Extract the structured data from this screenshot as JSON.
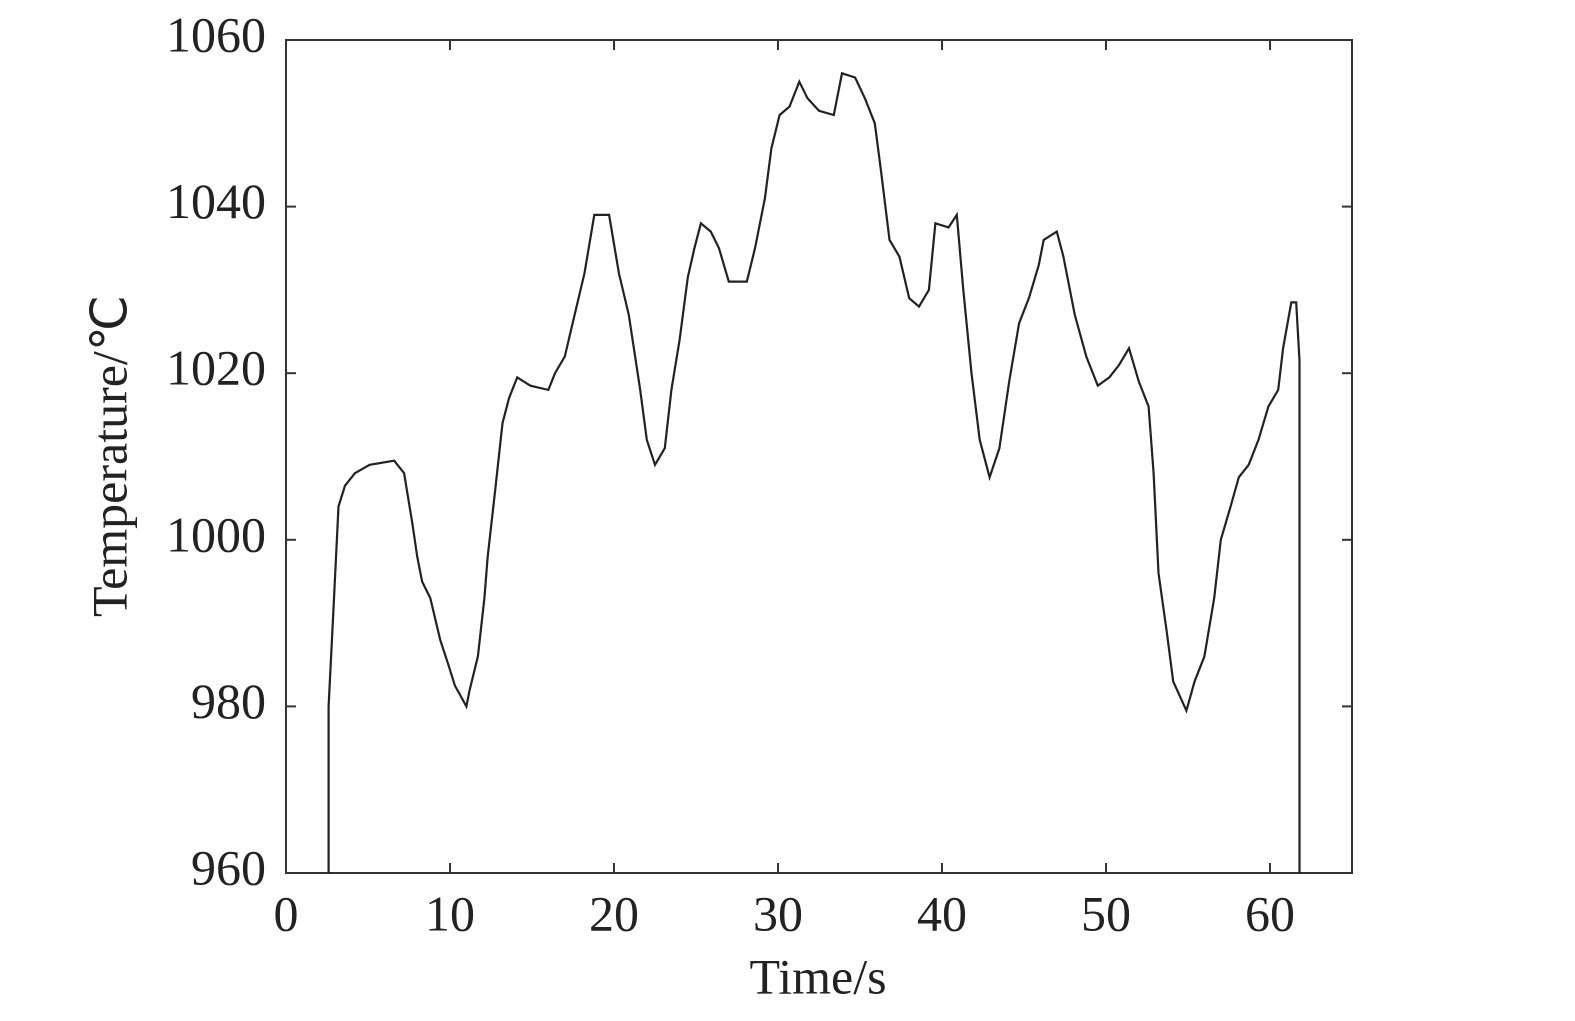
{
  "chart_data": {
    "type": "line",
    "x_label": "Time/s",
    "y_label": "Temperature/℃",
    "x": [
      2.6,
      2.6,
      2.9,
      3.2,
      3.6,
      4.2,
      5.1,
      6.6,
      7.2,
      7.7,
      8.0,
      8.3,
      8.8,
      9.4,
      9.9,
      10.3,
      11.0,
      11.2,
      11.7,
      12.1,
      12.3,
      12.7,
      13.2,
      13.6,
      14.1,
      14.9,
      16.0,
      16.4,
      17.0,
      17.6,
      18.2,
      18.8,
      19.7,
      20.3,
      20.9,
      21.6,
      22.0,
      22.5,
      23.1,
      23.5,
      24.0,
      24.5,
      24.9,
      25.3,
      25.9,
      26.4,
      27.0,
      28.1,
      28.6,
      29.2,
      29.6,
      30.1,
      30.7,
      31.3,
      31.8,
      32.5,
      33.4,
      33.9,
      34.7,
      35.3,
      35.9,
      36.3,
      36.8,
      37.4,
      38.0,
      38.6,
      39.2,
      39.6,
      40.4,
      40.9,
      41.3,
      41.8,
      42.3,
      42.9,
      43.5,
      44.1,
      44.7,
      45.3,
      45.9,
      46.2,
      47.0,
      47.4,
      48.1,
      48.8,
      49.5,
      50.2,
      50.8,
      51.4,
      52.0,
      52.6,
      52.9,
      53.2,
      53.7,
      54.1,
      54.9,
      55.4,
      56.0,
      56.6,
      57.0,
      57.6,
      58.1,
      58.7,
      59.3,
      59.9,
      60.5,
      60.8,
      61.3,
      61.6,
      61.8,
      61.8
    ],
    "values": [
      960,
      980,
      992,
      1004,
      1006.5,
      1008,
      1009,
      1009.5,
      1008,
      1002,
      998,
      995,
      993,
      988,
      985,
      982.5,
      980,
      982,
      986,
      993,
      998,
      1005,
      1014,
      1017,
      1019.5,
      1018.5,
      1018,
      1020,
      1022,
      1027,
      1032,
      1039,
      1039,
      1032,
      1027,
      1018,
      1012,
      1009,
      1011,
      1018,
      1024,
      1031.5,
      1035,
      1038,
      1037,
      1035,
      1031,
      1031,
      1035,
      1041,
      1047,
      1051,
      1052,
      1055,
      1053,
      1051.5,
      1051,
      1056,
      1055.5,
      1053,
      1050,
      1044,
      1036,
      1034,
      1029,
      1028,
      1030,
      1038,
      1037.5,
      1039,
      1030,
      1020,
      1012,
      1007.5,
      1011,
      1019,
      1026,
      1029,
      1033,
      1036,
      1037,
      1034,
      1027,
      1022,
      1018.5,
      1019.5,
      1021,
      1023,
      1019,
      1016,
      1008,
      996,
      989,
      983,
      979.5,
      983,
      986,
      993,
      1000,
      1004,
      1007.5,
      1009,
      1012,
      1016,
      1018,
      1023,
      1028.5,
      1028.5,
      1021.5,
      960
    ],
    "color": "#222222",
    "xlim": [
      0,
      65
    ],
    "xticks": [
      0,
      10,
      20,
      30,
      40,
      50,
      60
    ],
    "ylim": [
      960,
      1060
    ],
    "yticks": [
      960,
      980,
      1000,
      1020,
      1040,
      1060
    ],
    "grid": false
  }
}
